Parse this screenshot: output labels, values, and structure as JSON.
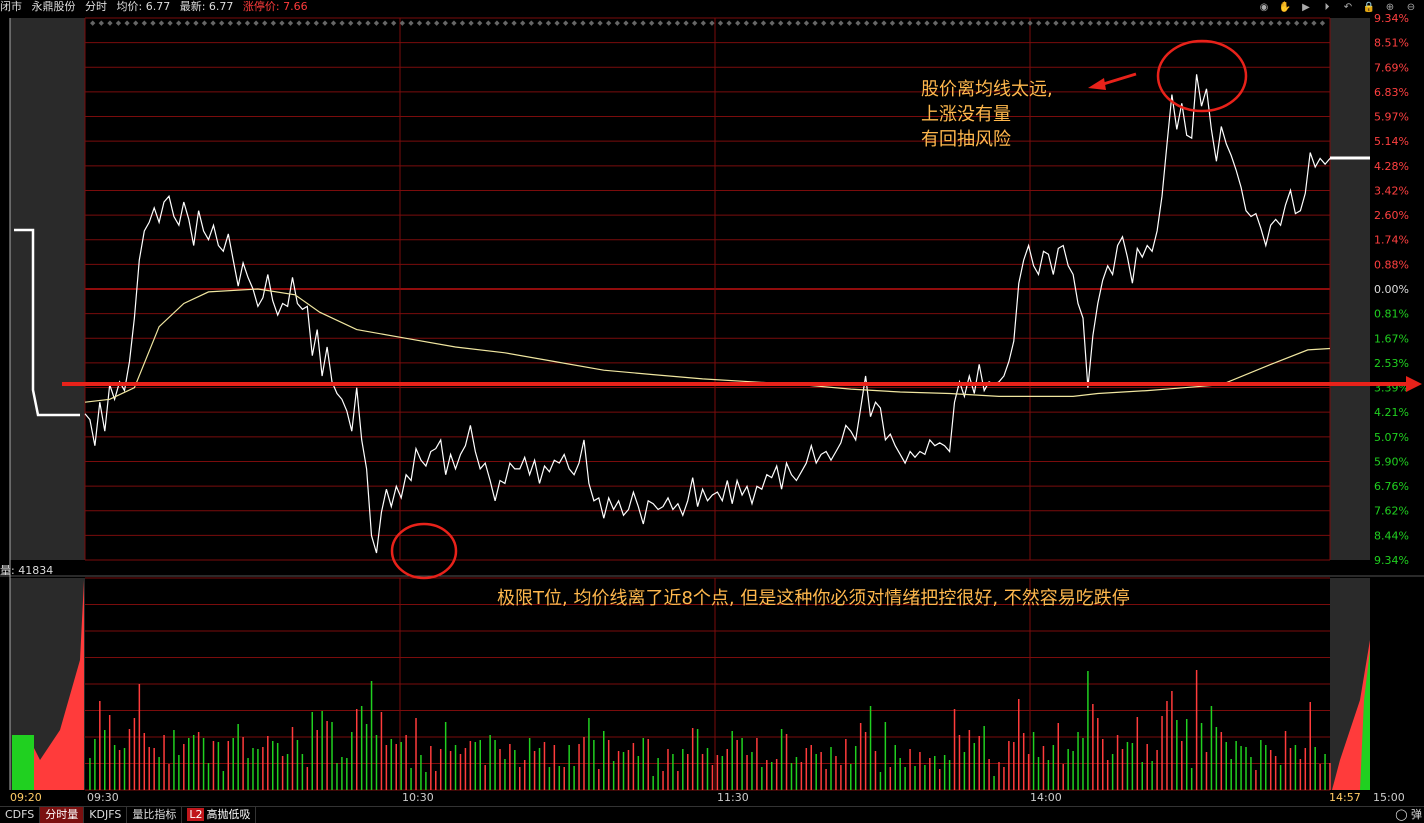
{
  "header": {
    "status": "闭市",
    "stock_name": "永鼎股份",
    "mode": "分时",
    "avg_label": "均价: 6.77",
    "last_label": "最新: 6.77",
    "limit_label": "涨停价: 7.66"
  },
  "header_icons": [
    "eye-icon",
    "hand-icon",
    "play-icon",
    "forward-icon",
    "undo-icon",
    "lock-icon",
    "plus-icon",
    "minus-icon"
  ],
  "volume": {
    "label": "量: 41834"
  },
  "annotations": {
    "top_right": [
      "股价离均线太远,",
      "上涨没有量",
      "有回抽风险"
    ],
    "bottom": "极限T位, 均价线离了近8个点, 但是这种你必须对情绪把控很好, 不然容易吃跌停"
  },
  "bottom_tabs": [
    {
      "label": "CDFS",
      "active": false
    },
    {
      "label": "分时量",
      "active": true
    },
    {
      "label": "KDJFS",
      "active": false
    },
    {
      "label": "量比指标",
      "active": false
    },
    {
      "label": "高抛低吸",
      "active": false,
      "badge": "L2"
    }
  ],
  "popup_label": "弹",
  "colors": {
    "price": "#ffffff",
    "avg": "#f0e6a0",
    "grid": "#7a0c0c",
    "up": "#ff3b3b",
    "down": "#20d020",
    "annotation": "#ffb84d",
    "arrow": "#e8221a"
  },
  "chart_data": {
    "type": "line",
    "title": "",
    "y_right_labels": [
      "9.34%",
      "8.51%",
      "7.69%",
      "6.83%",
      "5.97%",
      "5.14%",
      "4.28%",
      "3.42%",
      "2.60%",
      "1.74%",
      "0.88%",
      "0.00%",
      "0.81%",
      "1.67%",
      "2.53%",
      "3.39%",
      "4.21%",
      "5.07%",
      "5.90%",
      "6.76%",
      "7.62%",
      "8.44%",
      "9.34%"
    ],
    "x_labels": [
      "09:20",
      "09:30",
      "10:30",
      "11:30",
      "14:00",
      "14:57",
      "15:00"
    ],
    "ylim_pct": [
      -9.34,
      9.34
    ],
    "series": [
      {
        "name": "",
        "values": [
          [
            0,
            -4.3
          ],
          [
            4,
            -4.5
          ],
          [
            8,
            -5.4
          ],
          [
            12,
            -3.9
          ],
          [
            16,
            -4.9
          ],
          [
            20,
            -3.3
          ],
          [
            24,
            -3.8
          ],
          [
            28,
            -3.2
          ],
          [
            32,
            -3.5
          ],
          [
            36,
            -2.5
          ],
          [
            40,
            -1.0
          ],
          [
            44,
            1.0
          ],
          [
            48,
            2.0
          ],
          [
            52,
            2.3
          ],
          [
            56,
            2.8
          ],
          [
            60,
            2.3
          ],
          [
            64,
            3.0
          ],
          [
            68,
            3.2
          ],
          [
            72,
            2.5
          ],
          [
            76,
            2.2
          ],
          [
            80,
            3.0
          ],
          [
            84,
            2.4
          ],
          [
            88,
            1.5
          ],
          [
            92,
            2.7
          ],
          [
            96,
            2.0
          ],
          [
            100,
            1.7
          ],
          [
            104,
            2.2
          ],
          [
            108,
            1.5
          ],
          [
            112,
            1.3
          ],
          [
            116,
            1.9
          ],
          [
            120,
            1.0
          ],
          [
            124,
            0.1
          ],
          [
            128,
            0.9
          ],
          [
            132,
            0.4
          ],
          [
            136,
            0.0
          ],
          [
            140,
            -0.6
          ],
          [
            144,
            -0.3
          ],
          [
            148,
            0.5
          ],
          [
            152,
            -0.4
          ],
          [
            156,
            -0.9
          ],
          [
            160,
            -0.5
          ],
          [
            164,
            -0.6
          ],
          [
            168,
            0.4
          ],
          [
            172,
            -0.5
          ],
          [
            176,
            -0.7
          ],
          [
            180,
            -0.6
          ],
          [
            184,
            -2.3
          ],
          [
            188,
            -1.4
          ],
          [
            192,
            -3.0
          ],
          [
            196,
            -2.0
          ],
          [
            200,
            -3.2
          ],
          [
            204,
            -3.6
          ],
          [
            208,
            -3.8
          ],
          [
            212,
            -4.2
          ],
          [
            216,
            -4.9
          ],
          [
            220,
            -3.4
          ],
          [
            224,
            -5.2
          ],
          [
            228,
            -6.2
          ],
          [
            232,
            -8.5
          ],
          [
            236,
            -9.1
          ],
          [
            240,
            -7.7
          ],
          [
            244,
            -6.9
          ],
          [
            248,
            -7.5
          ],
          [
            252,
            -6.8
          ],
          [
            256,
            -7.2
          ],
          [
            260,
            -6.4
          ],
          [
            264,
            -6.6
          ],
          [
            268,
            -5.5
          ],
          [
            272,
            -5.9
          ],
          [
            276,
            -6.1
          ],
          [
            280,
            -5.6
          ],
          [
            284,
            -5.5
          ],
          [
            288,
            -5.2
          ],
          [
            292,
            -6.4
          ],
          [
            296,
            -5.7
          ],
          [
            300,
            -6.2
          ],
          [
            304,
            -5.7
          ],
          [
            308,
            -5.4
          ],
          [
            312,
            -4.7
          ],
          [
            316,
            -5.6
          ],
          [
            320,
            -6.2
          ],
          [
            324,
            -6.0
          ],
          [
            328,
            -6.6
          ],
          [
            332,
            -7.3
          ],
          [
            336,
            -6.6
          ],
          [
            340,
            -6.7
          ],
          [
            344,
            -6.0
          ],
          [
            348,
            -6.2
          ],
          [
            352,
            -6.2
          ],
          [
            356,
            -5.8
          ],
          [
            360,
            -6.4
          ],
          [
            364,
            -5.9
          ],
          [
            368,
            -6.7
          ],
          [
            372,
            -6.1
          ],
          [
            376,
            -6.3
          ],
          [
            380,
            -5.9
          ],
          [
            384,
            -6.0
          ],
          [
            388,
            -5.7
          ],
          [
            392,
            -6.2
          ],
          [
            396,
            -6.4
          ],
          [
            400,
            -6.0
          ],
          [
            404,
            -5.2
          ],
          [
            408,
            -6.7
          ],
          [
            412,
            -7.3
          ],
          [
            416,
            -7.2
          ],
          [
            420,
            -7.9
          ],
          [
            424,
            -7.2
          ],
          [
            428,
            -7.6
          ],
          [
            432,
            -7.3
          ],
          [
            436,
            -7.8
          ],
          [
            440,
            -7.6
          ],
          [
            444,
            -7.0
          ],
          [
            448,
            -7.5
          ],
          [
            452,
            -8.1
          ],
          [
            456,
            -7.3
          ],
          [
            460,
            -7.4
          ],
          [
            464,
            -7.6
          ],
          [
            468,
            -7.5
          ],
          [
            472,
            -7.2
          ],
          [
            476,
            -7.6
          ],
          [
            480,
            -7.4
          ],
          [
            484,
            -7.8
          ],
          [
            488,
            -7.3
          ],
          [
            492,
            -6.5
          ],
          [
            496,
            -7.5
          ],
          [
            500,
            -6.9
          ],
          [
            504,
            -7.3
          ],
          [
            508,
            -7.1
          ],
          [
            512,
            -7.0
          ],
          [
            516,
            -7.3
          ],
          [
            520,
            -6.6
          ],
          [
            524,
            -7.4
          ],
          [
            528,
            -6.6
          ],
          [
            532,
            -7.1
          ],
          [
            536,
            -6.8
          ],
          [
            540,
            -7.4
          ],
          [
            544,
            -6.8
          ],
          [
            548,
            -6.9
          ],
          [
            552,
            -6.4
          ],
          [
            556,
            -6.5
          ],
          [
            560,
            -6.1
          ],
          [
            564,
            -6.9
          ],
          [
            568,
            -6.0
          ],
          [
            572,
            -6.4
          ],
          [
            576,
            -6.6
          ],
          [
            580,
            -6.3
          ],
          [
            584,
            -6.0
          ],
          [
            588,
            -5.4
          ],
          [
            592,
            -6.0
          ],
          [
            596,
            -5.7
          ],
          [
            600,
            -5.6
          ],
          [
            604,
            -5.9
          ],
          [
            608,
            -5.6
          ],
          [
            612,
            -5.3
          ],
          [
            616,
            -4.7
          ],
          [
            620,
            -4.9
          ],
          [
            624,
            -5.2
          ],
          [
            628,
            -4.1
          ],
          [
            632,
            -3.0
          ],
          [
            636,
            -4.4
          ],
          [
            640,
            -3.9
          ],
          [
            644,
            -4.1
          ],
          [
            648,
            -5.2
          ],
          [
            652,
            -5.0
          ],
          [
            656,
            -5.4
          ],
          [
            660,
            -5.7
          ],
          [
            664,
            -6.0
          ],
          [
            668,
            -5.6
          ],
          [
            672,
            -5.8
          ],
          [
            676,
            -5.6
          ],
          [
            680,
            -5.7
          ],
          [
            684,
            -5.2
          ],
          [
            688,
            -5.4
          ],
          [
            692,
            -5.3
          ],
          [
            696,
            -5.4
          ],
          [
            700,
            -5.6
          ],
          [
            704,
            -3.9
          ],
          [
            708,
            -3.2
          ],
          [
            712,
            -3.7
          ],
          [
            716,
            -3.0
          ],
          [
            720,
            -3.6
          ],
          [
            724,
            -2.6
          ],
          [
            728,
            -3.5
          ],
          [
            732,
            -3.2
          ],
          [
            736,
            -3.3
          ],
          [
            740,
            -3.2
          ],
          [
            744,
            -3.0
          ],
          [
            748,
            -2.5
          ],
          [
            752,
            -1.8
          ],
          [
            756,
            0.2
          ],
          [
            760,
            1.0
          ],
          [
            764,
            1.5
          ],
          [
            768,
            0.8
          ],
          [
            772,
            0.5
          ],
          [
            776,
            1.3
          ],
          [
            780,
            1.2
          ],
          [
            784,
            0.5
          ],
          [
            788,
            1.4
          ],
          [
            792,
            1.5
          ],
          [
            796,
            0.8
          ],
          [
            800,
            0.5
          ],
          [
            804,
            -0.5
          ],
          [
            808,
            -1.0
          ],
          [
            812,
            -3.4
          ],
          [
            816,
            -1.6
          ],
          [
            820,
            -0.5
          ],
          [
            824,
            0.3
          ],
          [
            828,
            0.8
          ],
          [
            832,
            0.5
          ],
          [
            836,
            1.5
          ],
          [
            840,
            1.8
          ],
          [
            844,
            1.1
          ],
          [
            848,
            0.2
          ],
          [
            852,
            1.4
          ],
          [
            856,
            1.1
          ],
          [
            860,
            1.5
          ],
          [
            864,
            1.3
          ],
          [
            868,
            2.0
          ],
          [
            872,
            3.2
          ],
          [
            876,
            5.0
          ],
          [
            880,
            6.7
          ],
          [
            884,
            5.5
          ],
          [
            888,
            6.4
          ],
          [
            892,
            5.3
          ],
          [
            896,
            5.2
          ],
          [
            900,
            7.4
          ],
          [
            904,
            6.3
          ],
          [
            908,
            6.9
          ],
          [
            912,
            5.5
          ],
          [
            916,
            4.4
          ],
          [
            920,
            5.6
          ],
          [
            924,
            5.0
          ],
          [
            928,
            4.6
          ],
          [
            932,
            4.1
          ],
          [
            936,
            3.5
          ],
          [
            940,
            2.7
          ],
          [
            944,
            2.5
          ],
          [
            948,
            2.6
          ],
          [
            952,
            2.1
          ],
          [
            956,
            1.5
          ],
          [
            960,
            2.2
          ],
          [
            964,
            2.4
          ],
          [
            968,
            2.2
          ],
          [
            972,
            2.9
          ],
          [
            976,
            3.4
          ],
          [
            980,
            2.6
          ],
          [
            984,
            2.7
          ],
          [
            988,
            3.3
          ],
          [
            992,
            4.7
          ],
          [
            996,
            4.2
          ],
          [
            1000,
            4.5
          ],
          [
            1004,
            4.3
          ],
          [
            1008,
            4.5
          ]
        ]
      },
      {
        "name": "",
        "values": [
          [
            0,
            -3.9
          ],
          [
            20,
            -3.8
          ],
          [
            40,
            -3.4
          ],
          [
            60,
            -1.3
          ],
          [
            80,
            -0.5
          ],
          [
            100,
            -0.1
          ],
          [
            140,
            0.0
          ],
          [
            170,
            -0.2
          ],
          [
            190,
            -0.8
          ],
          [
            220,
            -1.4
          ],
          [
            260,
            -1.7
          ],
          [
            300,
            -2.0
          ],
          [
            340,
            -2.2
          ],
          [
            380,
            -2.5
          ],
          [
            420,
            -2.8
          ],
          [
            460,
            -2.95
          ],
          [
            500,
            -3.1
          ],
          [
            540,
            -3.2
          ],
          [
            580,
            -3.3
          ],
          [
            620,
            -3.45
          ],
          [
            660,
            -3.55
          ],
          [
            700,
            -3.6
          ],
          [
            740,
            -3.7
          ],
          [
            780,
            -3.7
          ],
          [
            800,
            -3.7
          ],
          [
            820,
            -3.6
          ],
          [
            860,
            -3.5
          ],
          [
            890,
            -3.4
          ],
          [
            920,
            -3.3
          ],
          [
            960,
            -2.6
          ],
          [
            990,
            -2.1
          ],
          [
            1008,
            -2.05
          ]
        ]
      }
    ],
    "volume_label": "量: 41834"
  }
}
